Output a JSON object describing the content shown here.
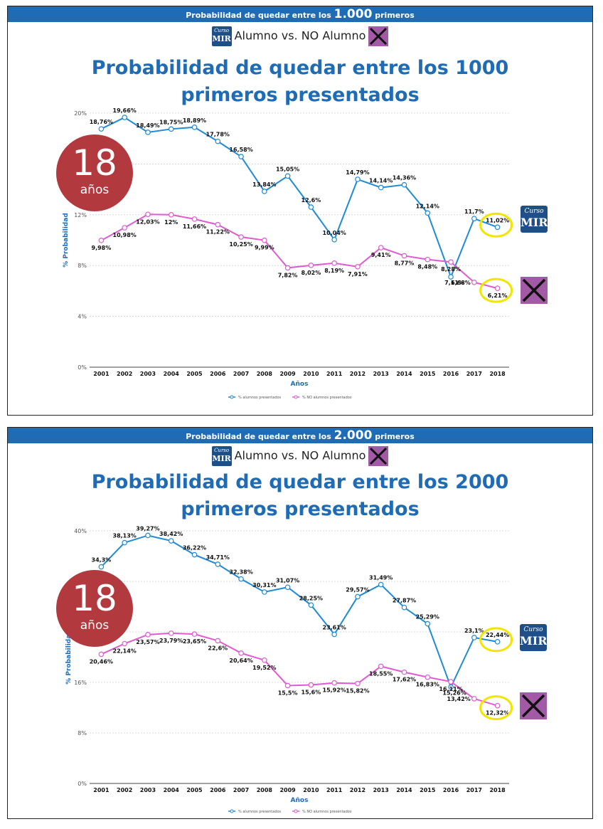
{
  "colors": {
    "banner": "#1f6cb5",
    "title": "#1f6cb5",
    "series_alumnos": "#1f8ad6",
    "series_no_alumnos": "#e05bd1",
    "badge": "#b23a3f",
    "highlight": "#f2e500",
    "logo": "#1f4f88",
    "no_logo": "#a25aa6"
  },
  "icons": {
    "logo": "curso-mir-logo-icon",
    "no_logo": "crossed-out-logo-icon"
  },
  "panels": [
    {
      "banner": {
        "prefix": "Probabilidad de quedar entre los",
        "number": "1.000",
        "suffix": "primeros"
      },
      "subtitle": {
        "left": "Alumno vs. NO Alumno"
      },
      "logo_text": {
        "l1": "Curso",
        "l2": "MIR"
      },
      "title_line1": "Probabilidad de quedar entre los 1000",
      "title_line2": "primeros presentados",
      "badge": {
        "number": "18",
        "unit": "años"
      }
    },
    {
      "banner": {
        "prefix": "Probabilidad de quedar entre los",
        "number": "2.000",
        "suffix": "primeros"
      },
      "subtitle": {
        "left": "Alumno vs. NO Alumno"
      },
      "logo_text": {
        "l1": "Curso",
        "l2": "MIR"
      },
      "title_line1": "Probabilidad de quedar entre los 2000",
      "title_line2": "primeros presentados",
      "badge": {
        "number": "18",
        "unit": "años"
      }
    }
  ],
  "chart_data": [
    {
      "type": "line",
      "title": "Probabilidad de quedar entre los 1000 primeros presentados",
      "xlabel": "Años",
      "ylabel": "% Probabilidad",
      "x": [
        "2001",
        "2002",
        "2003",
        "2004",
        "2005",
        "2006",
        "2007",
        "2008",
        "2009",
        "2010",
        "2011",
        "2012",
        "2013",
        "2014",
        "2015",
        "2016",
        "2017",
        "2018"
      ],
      "yticks": [
        0,
        4,
        8,
        12,
        16,
        20
      ],
      "ytick_labels": [
        "0%",
        "4%",
        "8%",
        "12%",
        "",
        "20%"
      ],
      "ylim": [
        0,
        20
      ],
      "grid": true,
      "legend_position": "bottom",
      "series": [
        {
          "name": "% alumnos presentados",
          "values": [
            18.76,
            19.66,
            18.49,
            18.75,
            18.89,
            17.78,
            16.58,
            13.84,
            15.05,
            12.6,
            10.04,
            14.79,
            14.14,
            14.36,
            12.14,
            7.11,
            11.7,
            11.02
          ],
          "labels": [
            "18,76%",
            "19,66%",
            "18,49%",
            "18,75%",
            "18,89%",
            "17,78%",
            "16,58%",
            "13,84%",
            "15,05%",
            "12,6%",
            "10,04%",
            "14,79%",
            "14,14%",
            "14,36%",
            "12,14%",
            "7,11%",
            "11,7%",
            "11,02%"
          ],
          "label_pos": [
            "above",
            "above",
            "above",
            "above",
            "above",
            "above",
            "above",
            "above",
            "above",
            "above",
            "above",
            "above",
            "above",
            "above",
            "above",
            "right",
            "above",
            "above"
          ]
        },
        {
          "name": "% NO alumnos presentados",
          "values": [
            9.98,
            10.98,
            12.03,
            12.0,
            11.66,
            11.22,
            10.25,
            9.99,
            7.82,
            8.02,
            8.19,
            7.91,
            9.41,
            8.77,
            8.48,
            8.28,
            6.68,
            6.21
          ],
          "labels": [
            "9,98%",
            "10,98%",
            "12,03%",
            "12%",
            "11,66%",
            "11,22%",
            "10,25%",
            "9,99%",
            "7,82%",
            "8,02%",
            "8,19%",
            "7,91%",
            "9,41%",
            "8,77%",
            "8,48%",
            "8,28%",
            "6,68%",
            "6,21%"
          ],
          "label_pos": [
            "below",
            "below",
            "below",
            "below",
            "below",
            "below",
            "below",
            "below",
            "below",
            "below",
            "below",
            "below",
            "below",
            "below",
            "below",
            "below",
            "left",
            "below"
          ]
        }
      ]
    },
    {
      "type": "line",
      "title": "Probabilidad de quedar entre los 2000 primeros presentados",
      "xlabel": "Años",
      "ylabel": "% Probabilidad",
      "x": [
        "2001",
        "2002",
        "2003",
        "2004",
        "2005",
        "2006",
        "2007",
        "2008",
        "2009",
        "2010",
        "2011",
        "2012",
        "2013",
        "2014",
        "2015",
        "2016",
        "2017",
        "2018"
      ],
      "yticks": [
        0,
        8,
        16,
        24,
        32,
        40
      ],
      "ytick_labels": [
        "0%",
        "8%",
        "16%",
        "",
        "",
        "40%"
      ],
      "ylim": [
        0,
        40
      ],
      "grid": true,
      "legend_position": "bottom",
      "series": [
        {
          "name": "% alumnos presentados",
          "values": [
            34.3,
            38.13,
            39.27,
            38.42,
            36.22,
            34.71,
            32.38,
            30.31,
            31.07,
            28.25,
            23.61,
            29.57,
            31.49,
            27.87,
            25.29,
            15.26,
            23.1,
            22.44
          ],
          "labels": [
            "34,3%",
            "38,13%",
            "39,27%",
            "38,42%",
            "36,22%",
            "34,71%",
            "32,38%",
            "30,31%",
            "31,07%",
            "28,25%",
            "23,61%",
            "29,57%",
            "31,49%",
            "27,87%",
            "25,29%",
            "15,26%",
            "23,1%",
            "22,44%"
          ],
          "label_pos": [
            "above",
            "above",
            "above",
            "above",
            "above",
            "above",
            "above",
            "above",
            "above",
            "above",
            "above",
            "above",
            "above",
            "above",
            "above",
            "right",
            "above",
            "above"
          ]
        },
        {
          "name": "% NO alumnos presentados",
          "values": [
            20.46,
            22.14,
            23.57,
            23.79,
            23.65,
            22.6,
            20.64,
            19.52,
            15.5,
            15.6,
            15.92,
            15.82,
            18.55,
            17.62,
            16.83,
            16.11,
            13.42,
            12.32
          ],
          "labels": [
            "20,46%",
            "22,14%",
            "23,57%",
            "23,79%",
            "23,65%",
            "22,6%",
            "20,64%",
            "19,52%",
            "15,5%",
            "15,6%",
            "15,92%",
            "15,82%",
            "18,55%",
            "17,62%",
            "16,83%",
            "16,11%",
            "13,42%",
            "12,32%"
          ],
          "label_pos": [
            "below",
            "below",
            "below",
            "below",
            "below",
            "below",
            "below",
            "below",
            "below",
            "below",
            "below",
            "below",
            "below",
            "below",
            "below",
            "below",
            "left",
            "below"
          ]
        }
      ]
    }
  ]
}
